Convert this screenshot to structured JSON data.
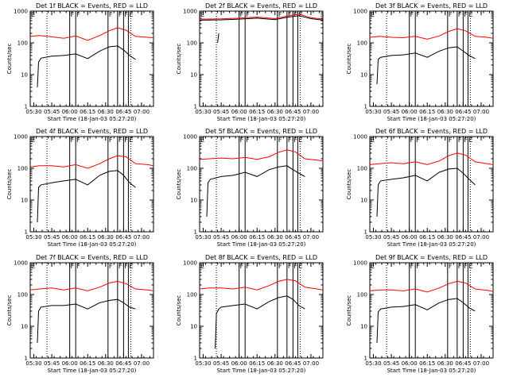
{
  "chart_data": [
    {
      "type": "line",
      "title": "Det 1f BLACK = Events, RED = LLD",
      "xlabel": "Start Time (18-Jan-03 05:27:20)",
      "ylabel": "Counts/sec",
      "yscale": "log",
      "ylim": [
        1,
        1000
      ],
      "yticks": [
        1,
        10,
        100,
        1000
      ],
      "ytick_labels": [
        "1",
        "10",
        "100",
        "1000"
      ],
      "xlim": [
        "05:27",
        "07:10"
      ],
      "xtick_labels": [
        "05:30",
        "05:45",
        "06:00",
        "06:15",
        "06:30",
        "06:45",
        "07:00"
      ],
      "dotted_times": [
        "05:41",
        "06:51"
      ],
      "flag_lines": [
        "06:00",
        "06:05",
        "06:32",
        "06:40",
        "06:45",
        "06:49"
      ],
      "flag_labels": [
        "F",
        "F",
        "F",
        "F",
        "F",
        "E"
      ],
      "series": [
        {
          "color": "#ff0000",
          "x": [
            "05:27",
            "05:35",
            "05:45",
            "05:55",
            "06:05",
            "06:15",
            "06:25",
            "06:33",
            "06:40",
            "06:47",
            "06:55",
            "07:05",
            "07:10"
          ],
          "y": [
            160,
            170,
            155,
            140,
            165,
            120,
            170,
            240,
            300,
            250,
            160,
            150,
            145
          ]
        },
        {
          "color": "#000000",
          "x": [
            "05:33",
            "05:34",
            "05:36",
            "05:45",
            "05:55",
            "06:05",
            "06:15",
            "06:25",
            "06:33",
            "06:40",
            "06:45",
            "06:50",
            "06:55"
          ],
          "y": [
            4,
            25,
            33,
            38,
            40,
            45,
            32,
            55,
            75,
            80,
            60,
            40,
            30
          ]
        }
      ]
    },
    {
      "type": "line",
      "title": "Det 2f BLACK = Events, RED = LLD",
      "xlabel": "Start Time (18-Jan-03 05:27:20)",
      "ylabel": "Counts/sec",
      "yscale": "log",
      "ylim": [
        1,
        1000
      ],
      "yticks": [
        1,
        10,
        100,
        1000
      ],
      "ytick_labels": [
        "1",
        "10",
        "100",
        "1000"
      ],
      "xlim": [
        "05:27",
        "07:10"
      ],
      "xtick_labels": [
        "05:30",
        "05:45",
        "06:00",
        "06:15",
        "06:30",
        "06:45",
        "07:00"
      ],
      "dotted_times": [
        "05:41",
        "06:51"
      ],
      "flag_lines": [
        "06:00",
        "06:05",
        "06:32",
        "06:40",
        "06:45",
        "06:49"
      ],
      "flag_labels": [
        "F",
        "F",
        "F",
        "F",
        "F",
        "E"
      ],
      "series": [
        {
          "color": "#ff0000",
          "x": [
            "05:27",
            "05:45",
            "06:00",
            "06:15",
            "06:30",
            "06:40",
            "06:50",
            "07:00",
            "07:10"
          ],
          "y": [
            560,
            570,
            600,
            650,
            580,
            700,
            800,
            620,
            560
          ]
        },
        {
          "color": "#000000",
          "x": [
            "05:27",
            "05:45",
            "06:00",
            "06:15",
            "06:30",
            "06:40",
            "06:50",
            "07:00",
            "07:10"
          ],
          "y": [
            520,
            530,
            560,
            600,
            540,
            640,
            720,
            580,
            520
          ]
        },
        {
          "color": "#000000",
          "x": [
            "05:42",
            "05:43"
          ],
          "y": [
            100,
            200
          ]
        }
      ]
    },
    {
      "type": "line",
      "title": "Det 3f BLACK = Events, RED = LLD",
      "xlabel": "Start Time (18-Jan-03 05:27:20)",
      "ylabel": "Counts/sec",
      "yscale": "log",
      "ylim": [
        1,
        1000
      ],
      "yticks": [
        1,
        10,
        100,
        1000
      ],
      "ytick_labels": [
        "1",
        "10",
        "100",
        "1000"
      ],
      "xlim": [
        "05:27",
        "07:10"
      ],
      "xtick_labels": [
        "05:30",
        "05:45",
        "06:00",
        "06:15",
        "06:30",
        "06:45",
        "07:00"
      ],
      "dotted_times": [
        "05:41",
        "06:51"
      ],
      "flag_lines": [
        "06:00",
        "06:05",
        "06:32",
        "06:40",
        "06:45",
        "06:49"
      ],
      "flag_labels": [
        "F",
        "F",
        "F",
        "F",
        "F",
        "E"
      ],
      "series": [
        {
          "color": "#ff0000",
          "x": [
            "05:27",
            "05:35",
            "05:45",
            "05:55",
            "06:05",
            "06:15",
            "06:25",
            "06:33",
            "06:40",
            "06:47",
            "06:55",
            "07:05",
            "07:10"
          ],
          "y": [
            150,
            160,
            150,
            145,
            160,
            130,
            165,
            230,
            280,
            240,
            160,
            150,
            140
          ]
        },
        {
          "color": "#000000",
          "x": [
            "05:33",
            "05:34",
            "05:36",
            "05:45",
            "05:55",
            "06:05",
            "06:15",
            "06:25",
            "06:33",
            "06:40",
            "06:45",
            "06:50",
            "06:55"
          ],
          "y": [
            5,
            30,
            35,
            40,
            42,
            48,
            35,
            55,
            70,
            75,
            55,
            40,
            32
          ]
        }
      ]
    },
    {
      "type": "line",
      "title": "Det 4f BLACK = Events, RED = LLD",
      "xlabel": "Start Time (18-Jan-03 05:27:20)",
      "ylabel": "Counts/sec",
      "yscale": "log",
      "ylim": [
        1,
        1000
      ],
      "yticks": [
        1,
        10,
        100,
        1000
      ],
      "ytick_labels": [
        "1",
        "10",
        "100",
        "1000"
      ],
      "xlim": [
        "05:27",
        "07:10"
      ],
      "xtick_labels": [
        "05:30",
        "05:45",
        "06:00",
        "06:15",
        "06:30",
        "06:45",
        "07:00"
      ],
      "dotted_times": [
        "05:41",
        "06:51"
      ],
      "flag_lines": [
        "06:00",
        "06:05",
        "06:32",
        "06:40",
        "06:45",
        "06:49"
      ],
      "flag_labels": [
        "F",
        "F",
        "F",
        "F",
        "F",
        "E"
      ],
      "series": [
        {
          "color": "#ff0000",
          "x": [
            "05:27",
            "05:35",
            "05:45",
            "05:55",
            "06:05",
            "06:15",
            "06:25",
            "06:33",
            "06:40",
            "06:47",
            "06:55",
            "07:05",
            "07:10"
          ],
          "y": [
            110,
            120,
            120,
            110,
            130,
            100,
            140,
            200,
            250,
            230,
            140,
            130,
            120
          ]
        },
        {
          "color": "#000000",
          "x": [
            "05:33",
            "05:34",
            "05:36",
            "05:45",
            "05:55",
            "06:05",
            "06:15",
            "06:25",
            "06:33",
            "06:40",
            "06:45",
            "06:50",
            "06:55"
          ],
          "y": [
            2,
            25,
            30,
            35,
            40,
            45,
            30,
            60,
            80,
            85,
            60,
            35,
            25
          ]
        }
      ]
    },
    {
      "type": "line",
      "title": "Det 5f BLACK = Events, RED = LLD",
      "xlabel": "Start Time (18-Jan-03 05:27:20)",
      "ylabel": "Counts/sec",
      "yscale": "log",
      "ylim": [
        1,
        1000
      ],
      "yticks": [
        1,
        10,
        100,
        1000
      ],
      "ytick_labels": [
        "1",
        "10",
        "100",
        "1000"
      ],
      "xlim": [
        "05:27",
        "07:10"
      ],
      "xtick_labels": [
        "05:30",
        "05:45",
        "06:00",
        "06:15",
        "06:30",
        "06:45",
        "07:00"
      ],
      "dotted_times": [
        "05:41",
        "06:51"
      ],
      "flag_lines": [
        "06:00",
        "06:05",
        "06:32",
        "06:40",
        "06:45",
        "06:49"
      ],
      "flag_labels": [
        "F",
        "F",
        "F",
        "F",
        "F",
        "E"
      ],
      "series": [
        {
          "color": "#ff0000",
          "x": [
            "05:27",
            "05:35",
            "05:45",
            "05:55",
            "06:05",
            "06:15",
            "06:25",
            "06:33",
            "06:40",
            "06:47",
            "06:55",
            "07:05",
            "07:10"
          ],
          "y": [
            190,
            200,
            210,
            200,
            220,
            190,
            230,
            320,
            380,
            330,
            200,
            180,
            170
          ]
        },
        {
          "color": "#000000",
          "x": [
            "05:33",
            "05:34",
            "05:36",
            "05:45",
            "05:55",
            "06:05",
            "06:15",
            "06:25",
            "06:33",
            "06:40",
            "06:45",
            "06:50",
            "06:55"
          ],
          "y": [
            3,
            35,
            45,
            55,
            60,
            75,
            55,
            90,
            110,
            120,
            90,
            70,
            55
          ]
        }
      ]
    },
    {
      "type": "line",
      "title": "Det 6f BLACK = Events, RED = LLD",
      "xlabel": "Start Time (18-Jan-03 05:27:20)",
      "ylabel": "Counts/sec",
      "yscale": "log",
      "ylim": [
        1,
        1000
      ],
      "yticks": [
        1,
        10,
        100,
        1000
      ],
      "ytick_labels": [
        "1",
        "10",
        "100",
        "1000"
      ],
      "xlim": [
        "05:27",
        "07:10"
      ],
      "xtick_labels": [
        "05:30",
        "05:45",
        "06:00",
        "06:15",
        "06:30",
        "06:45",
        "07:00"
      ],
      "dotted_times": [
        "05:41",
        "06:51"
      ],
      "flag_lines": [
        "06:00",
        "06:05",
        "06:32",
        "06:40",
        "06:45",
        "06:49"
      ],
      "flag_labels": [
        "F",
        "F",
        "F",
        "F",
        "F",
        "E"
      ],
      "series": [
        {
          "color": "#ff0000",
          "x": [
            "05:27",
            "05:35",
            "05:45",
            "05:55",
            "06:05",
            "06:15",
            "06:25",
            "06:33",
            "06:40",
            "06:47",
            "06:55",
            "07:05",
            "07:10"
          ],
          "y": [
            130,
            140,
            150,
            140,
            160,
            130,
            170,
            250,
            300,
            260,
            160,
            140,
            130
          ]
        },
        {
          "color": "#000000",
          "x": [
            "05:33",
            "05:34",
            "05:36",
            "05:45",
            "05:55",
            "06:05",
            "06:15",
            "06:25",
            "06:33",
            "06:40",
            "06:45",
            "06:50",
            "06:55"
          ],
          "y": [
            3,
            30,
            40,
            45,
            50,
            60,
            40,
            75,
            95,
            100,
            70,
            45,
            30
          ]
        }
      ]
    },
    {
      "type": "line",
      "title": "Det 7f BLACK = Events, RED = LLD",
      "xlabel": "Start Time (18-Jan-03 05:27:20)",
      "ylabel": "Counts/sec",
      "yscale": "log",
      "ylim": [
        1,
        1000
      ],
      "yticks": [
        1,
        10,
        100,
        1000
      ],
      "ytick_labels": [
        "1",
        "10",
        "100",
        "1000"
      ],
      "xlim": [
        "05:27",
        "07:10"
      ],
      "xtick_labels": [
        "05:30",
        "05:45",
        "06:00",
        "06:15",
        "06:30",
        "06:45",
        "07:00"
      ],
      "dotted_times": [
        "05:41",
        "06:51"
      ],
      "flag_lines": [
        "06:00",
        "06:05",
        "06:32",
        "06:40",
        "06:45",
        "06:49"
      ],
      "flag_labels": [
        "F",
        "F",
        "F",
        "F",
        "F",
        "E"
      ],
      "series": [
        {
          "color": "#ff0000",
          "x": [
            "05:27",
            "05:35",
            "05:45",
            "05:55",
            "06:05",
            "06:15",
            "06:25",
            "06:33",
            "06:40",
            "06:47",
            "06:55",
            "07:05",
            "07:10"
          ],
          "y": [
            140,
            150,
            160,
            140,
            160,
            130,
            170,
            230,
            260,
            220,
            150,
            140,
            130
          ]
        },
        {
          "color": "#000000",
          "x": [
            "05:33",
            "05:34",
            "05:36",
            "05:45",
            "05:55",
            "06:05",
            "06:15",
            "06:25",
            "06:33",
            "06:40",
            "06:45",
            "06:50",
            "06:55"
          ],
          "y": [
            3,
            30,
            40,
            45,
            45,
            50,
            35,
            55,
            65,
            70,
            55,
            40,
            35
          ]
        }
      ]
    },
    {
      "type": "line",
      "title": "Det 8f BLACK = Events, RED = LLD",
      "xlabel": "Start Time (18-Jan-03 05:27:20)",
      "ylabel": "Counts/sec",
      "yscale": "log",
      "ylim": [
        1,
        1000
      ],
      "yticks": [
        1,
        10,
        100,
        1000
      ],
      "ytick_labels": [
        "1",
        "10",
        "100",
        "1000"
      ],
      "xlim": [
        "05:27",
        "07:10"
      ],
      "xtick_labels": [
        "05:30",
        "05:45",
        "06:00",
        "06:15",
        "06:30",
        "06:45",
        "07:00"
      ],
      "dotted_times": [
        "05:41",
        "06:51"
      ],
      "flag_lines": [
        "06:00",
        "06:05",
        "06:32",
        "06:40",
        "06:45",
        "06:49"
      ],
      "flag_labels": [
        "F",
        "F",
        "F",
        "F",
        "F",
        "E"
      ],
      "series": [
        {
          "color": "#ff0000",
          "x": [
            "05:27",
            "05:35",
            "05:45",
            "05:55",
            "06:05",
            "06:15",
            "06:25",
            "06:33",
            "06:40",
            "06:47",
            "06:55",
            "07:05",
            "07:10"
          ],
          "y": [
            150,
            160,
            160,
            150,
            170,
            140,
            190,
            260,
            300,
            270,
            170,
            150,
            140
          ]
        },
        {
          "color": "#000000",
          "x": [
            "05:40",
            "05:41",
            "05:43",
            "05:45",
            "05:55",
            "06:05",
            "06:15",
            "06:25",
            "06:33",
            "06:40",
            "06:45",
            "06:50",
            "06:55"
          ],
          "y": [
            2,
            25,
            35,
            40,
            45,
            50,
            35,
            60,
            80,
            90,
            70,
            45,
            35
          ]
        }
      ]
    },
    {
      "type": "line",
      "title": "Det 9f BLACK = Events, RED = LLD",
      "xlabel": "Start Time (18-Jan-03 05:27:20)",
      "ylabel": "Counts/sec",
      "yscale": "log",
      "ylim": [
        1,
        1000
      ],
      "yticks": [
        1,
        10,
        100,
        1000
      ],
      "ytick_labels": [
        "1",
        "10",
        "100",
        "1000"
      ],
      "xlim": [
        "05:27",
        "07:10"
      ],
      "xtick_labels": [
        "05:30",
        "05:45",
        "06:00",
        "06:15",
        "06:30",
        "06:45",
        "07:00"
      ],
      "dotted_times": [
        "05:41",
        "06:51"
      ],
      "flag_lines": [
        "06:00",
        "06:05",
        "06:32",
        "06:40",
        "06:45",
        "06:49"
      ],
      "flag_labels": [
        "F",
        "F",
        "F",
        "F",
        "F",
        "E"
      ],
      "series": [
        {
          "color": "#ff0000",
          "x": [
            "05:27",
            "05:35",
            "05:45",
            "05:55",
            "06:05",
            "06:15",
            "06:25",
            "06:33",
            "06:40",
            "06:47",
            "06:55",
            "07:05",
            "07:10"
          ],
          "y": [
            130,
            140,
            140,
            130,
            150,
            120,
            160,
            220,
            260,
            230,
            150,
            135,
            125
          ]
        },
        {
          "color": "#000000",
          "x": [
            "05:33",
            "05:34",
            "05:36",
            "05:45",
            "05:55",
            "06:05",
            "06:15",
            "06:25",
            "06:33",
            "06:40",
            "06:45",
            "06:50",
            "06:55"
          ],
          "y": [
            3,
            28,
            35,
            40,
            42,
            48,
            33,
            55,
            70,
            75,
            55,
            38,
            30
          ]
        }
      ]
    }
  ]
}
